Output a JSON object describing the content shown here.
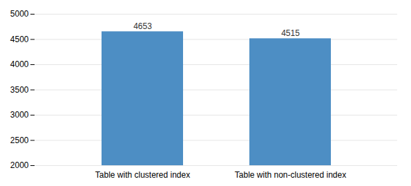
{
  "chart_data": {
    "type": "bar",
    "categories": [
      "Table with clustered index",
      "Table with non-clustered index"
    ],
    "values": [
      4653,
      4515
    ],
    "color": "#4d8ec4",
    "ylim": [
      2000,
      5000
    ],
    "yticks": [
      2000,
      2500,
      3000,
      3500,
      4000,
      4500,
      5000
    ],
    "grid": true,
    "data_labels": true
  }
}
